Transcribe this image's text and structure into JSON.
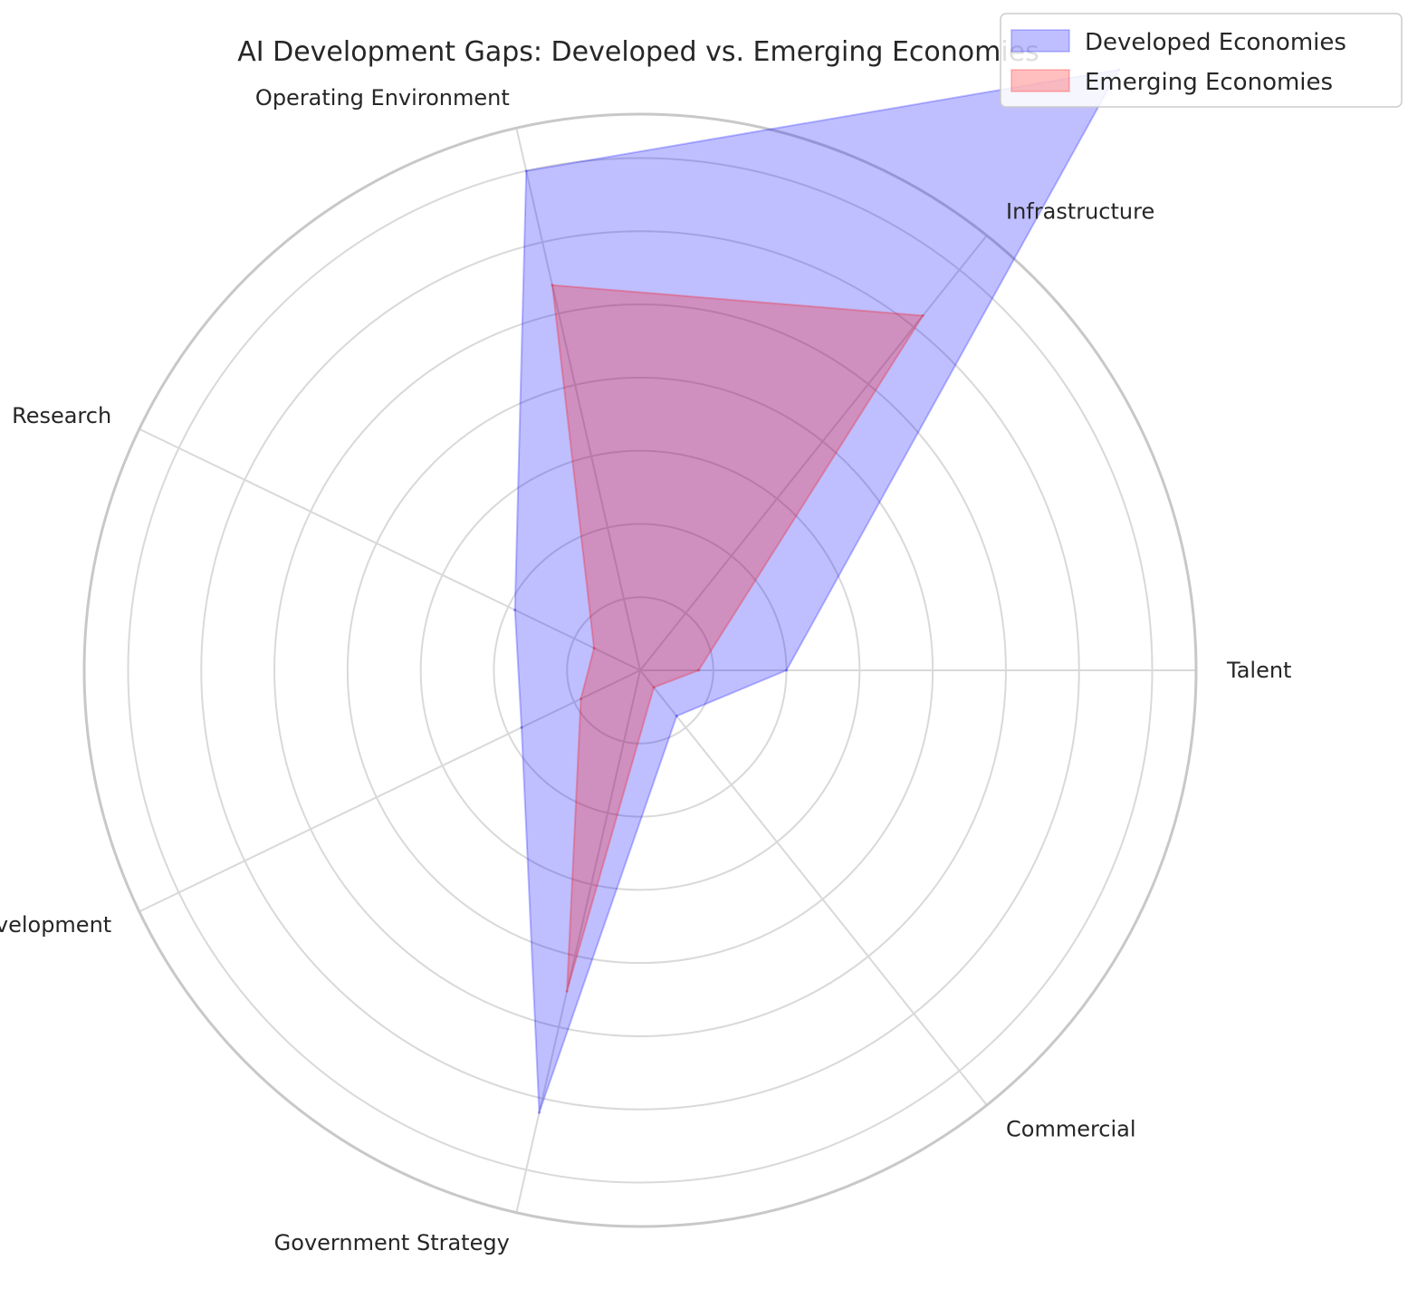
{
  "chart_data": {
    "type": "radar",
    "title": "AI Development Gaps: Developed vs. Emerging Economies",
    "categories": [
      "Talent",
      "Infrastructure",
      "Operating Environment",
      "Research",
      "Development",
      "Government Strategy",
      "Commercial"
    ],
    "series": [
      {
        "name": "Developed Economies",
        "values": [
          20,
          105,
          70,
          19,
          18,
          62,
          8
        ],
        "color": "#0000ff"
      },
      {
        "name": "Emerging Economies",
        "values": [
          8,
          62,
          54,
          7,
          9,
          45,
          3
        ],
        "color": "#ff0000"
      }
    ],
    "r_max": 76,
    "r_grid_step": 10,
    "grid": true,
    "legend_position": "top-right"
  }
}
